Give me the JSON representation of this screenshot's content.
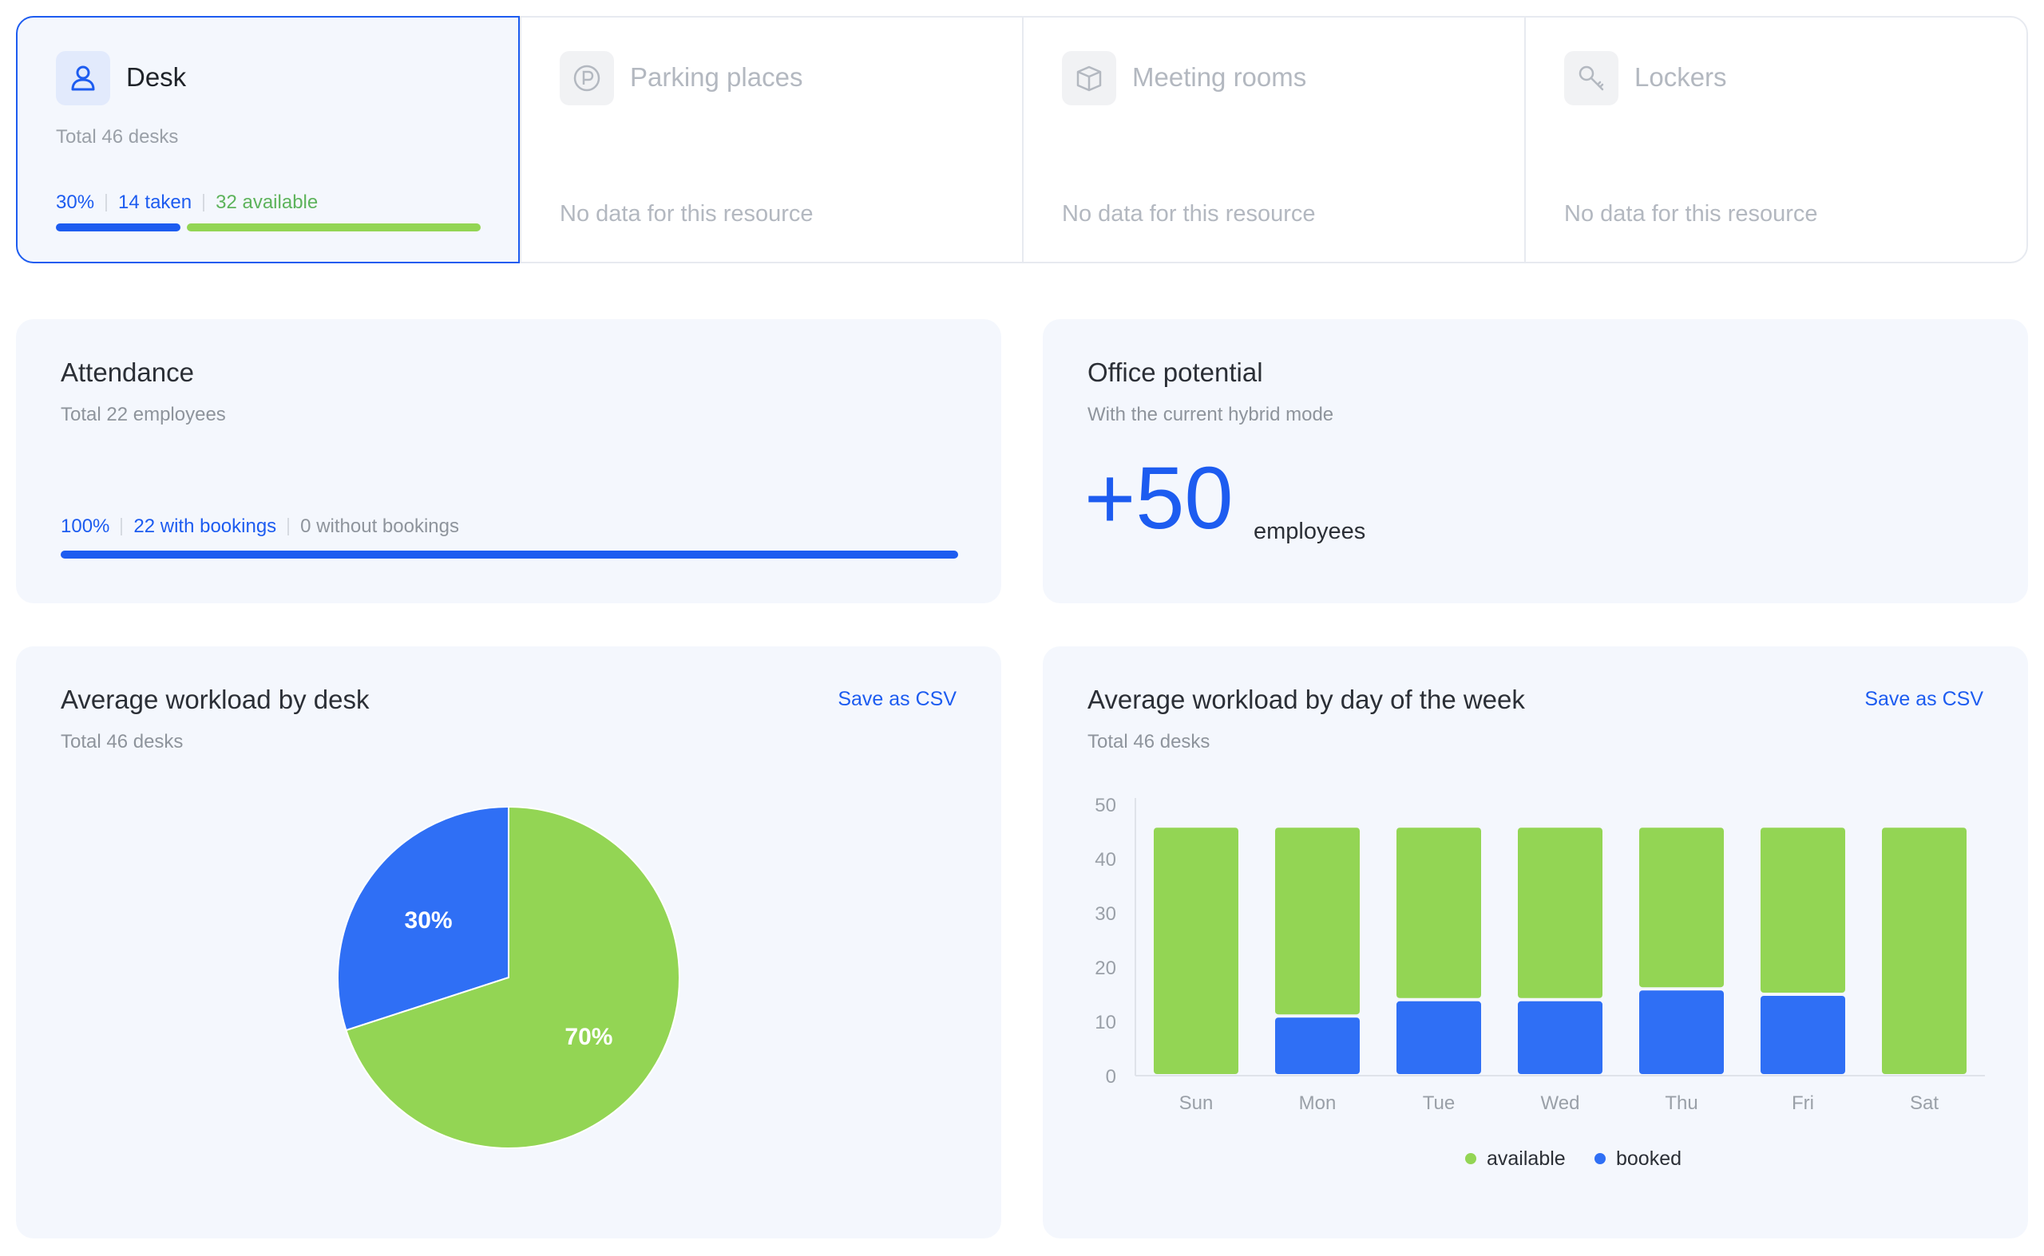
{
  "resources": {
    "desk": {
      "title": "Desk",
      "subtitle": "Total 46 desks",
      "percent": "30%",
      "taken": "14 taken",
      "available": "32 available",
      "taken_fraction": 0.3,
      "icon": "person-icon"
    },
    "parking": {
      "title": "Parking places",
      "empty": "No data for this resource",
      "icon": "parking-icon"
    },
    "meeting": {
      "title": "Meeting rooms",
      "empty": "No data for this resource",
      "icon": "box-icon"
    },
    "lockers": {
      "title": "Lockers",
      "empty": "No data for this resource",
      "icon": "key-icon"
    }
  },
  "attendance": {
    "title": "Attendance",
    "subtitle": "Total 22 employees",
    "percent": "100%",
    "with": "22 with bookings",
    "without": "0 without bookings",
    "fraction": 1.0
  },
  "potential": {
    "title": "Office potential",
    "subtitle": "With the current hybrid mode",
    "value": "+50",
    "unit": "employees"
  },
  "workload_desk": {
    "title": "Average workload by desk",
    "subtitle": "Total 46 desks",
    "csv": "Save as CSV"
  },
  "workload_week": {
    "title": "Average workload by day of the week",
    "subtitle": "Total 46 desks",
    "csv": "Save as CSV"
  },
  "colors": {
    "blue": "#2f6ff5",
    "green": "#93d554",
    "accent": "#1d5cf0"
  },
  "chart_data": [
    {
      "type": "pie",
      "labels": [
        "booked",
        "available"
      ],
      "values": [
        30,
        70
      ],
      "data_labels": [
        "30%",
        "70%"
      ]
    },
    {
      "type": "bar",
      "stacked": true,
      "categories": [
        "Sun",
        "Mon",
        "Tue",
        "Wed",
        "Thu",
        "Fri",
        "Sat"
      ],
      "series": [
        {
          "name": "booked",
          "values": [
            0,
            11,
            14,
            14,
            16,
            15,
            0
          ]
        },
        {
          "name": "available",
          "values": [
            46,
            35,
            32,
            32,
            30,
            31,
            46
          ]
        }
      ],
      "yticks": [
        "0",
        "10",
        "20",
        "30",
        "40",
        "50"
      ],
      "ylim": [
        0,
        50
      ],
      "legend": [
        "available",
        "booked"
      ],
      "legend_position": "bottom"
    }
  ]
}
